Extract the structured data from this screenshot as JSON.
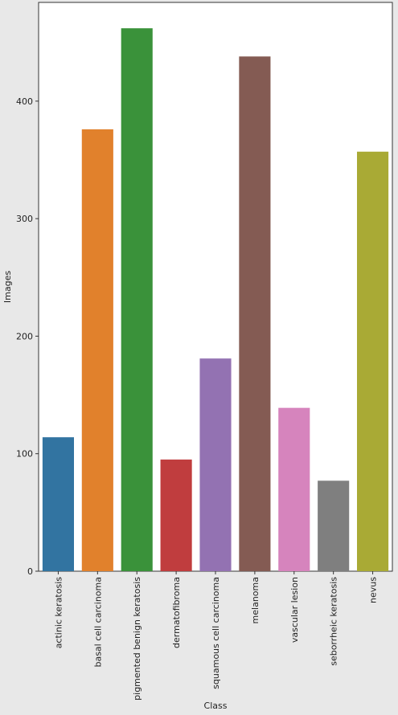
{
  "chart_data": {
    "type": "bar",
    "categories": [
      "actinic keratosis",
      "basal cell carcinoma",
      "pigmented benign keratosis",
      "dermatofibroma",
      "squamous cell carcinoma",
      "melanoma",
      "vascular lesion",
      "seborrheic keratosis",
      "nevus"
    ],
    "values": [
      114,
      376,
      462,
      95,
      181,
      438,
      139,
      77,
      357
    ],
    "colors": [
      "#3274a1",
      "#e1812c",
      "#3a923a",
      "#c03d3e",
      "#9372b2",
      "#845b53",
      "#d684bd",
      "#7f7f7f",
      "#a9aa35"
    ],
    "xlabel": "Class",
    "ylabel": "Images",
    "ylim": [
      0,
      484
    ],
    "yticks": [
      0,
      100,
      200,
      300,
      400
    ],
    "grid": false,
    "legend": "none"
  }
}
